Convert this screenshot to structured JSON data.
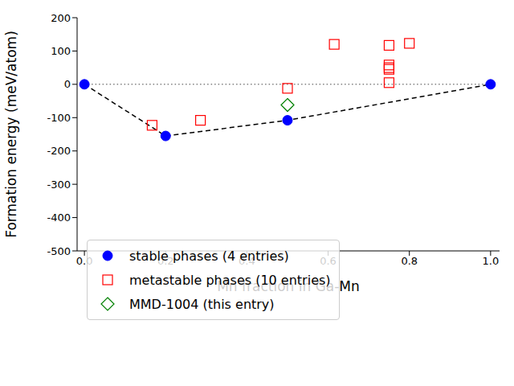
{
  "chart_data": {
    "type": "scatter",
    "xlabel": "Mn fraction in Ga-Mn",
    "ylabel": "Formation energy (meV/atom)",
    "xlim": [
      -0.018,
      1.022
    ],
    "ylim": [
      -500,
      200
    ],
    "xticks": [
      {
        "value": 0,
        "label": "0.0"
      },
      {
        "value": 0.2,
        "label": "0.2"
      },
      {
        "value": 0.4,
        "label": "0.4"
      },
      {
        "value": 0.6,
        "label": "0.6"
      },
      {
        "value": 0.8,
        "label": "0.8"
      },
      {
        "value": 1,
        "label": "1.0"
      }
    ],
    "yticks": [
      -500,
      -400,
      -300,
      -200,
      -100,
      0,
      100,
      200
    ],
    "legend": "lower left",
    "reference_lines": [
      {
        "y": 0,
        "x": [
          0,
          1
        ],
        "color": "#808080",
        "line_style": "dotted"
      }
    ],
    "series": [
      {
        "name": "stable phases (4 entries)",
        "color": "#0000ff",
        "marker": "circle",
        "line_style": "dashed",
        "x": [
          0,
          0.2,
          0.5,
          1
        ],
        "values": [
          0,
          -155,
          -108,
          0
        ]
      },
      {
        "name": "metastable phases (10 entries)",
        "color": "#ff0000",
        "marker": "square",
        "x": [
          0.1667,
          0.2857,
          0.5,
          0.615,
          0.75,
          0.75,
          0.75,
          0.75,
          0.75,
          0.8
        ],
        "values": [
          -123,
          -108,
          -12,
          120,
          117,
          58,
          50,
          45,
          5,
          123
        ]
      },
      {
        "name": "MMD-1004 (this entry)",
        "color": "#008000",
        "marker": "diamond",
        "x": [
          0.5
        ],
        "values": [
          -62
        ]
      }
    ]
  }
}
